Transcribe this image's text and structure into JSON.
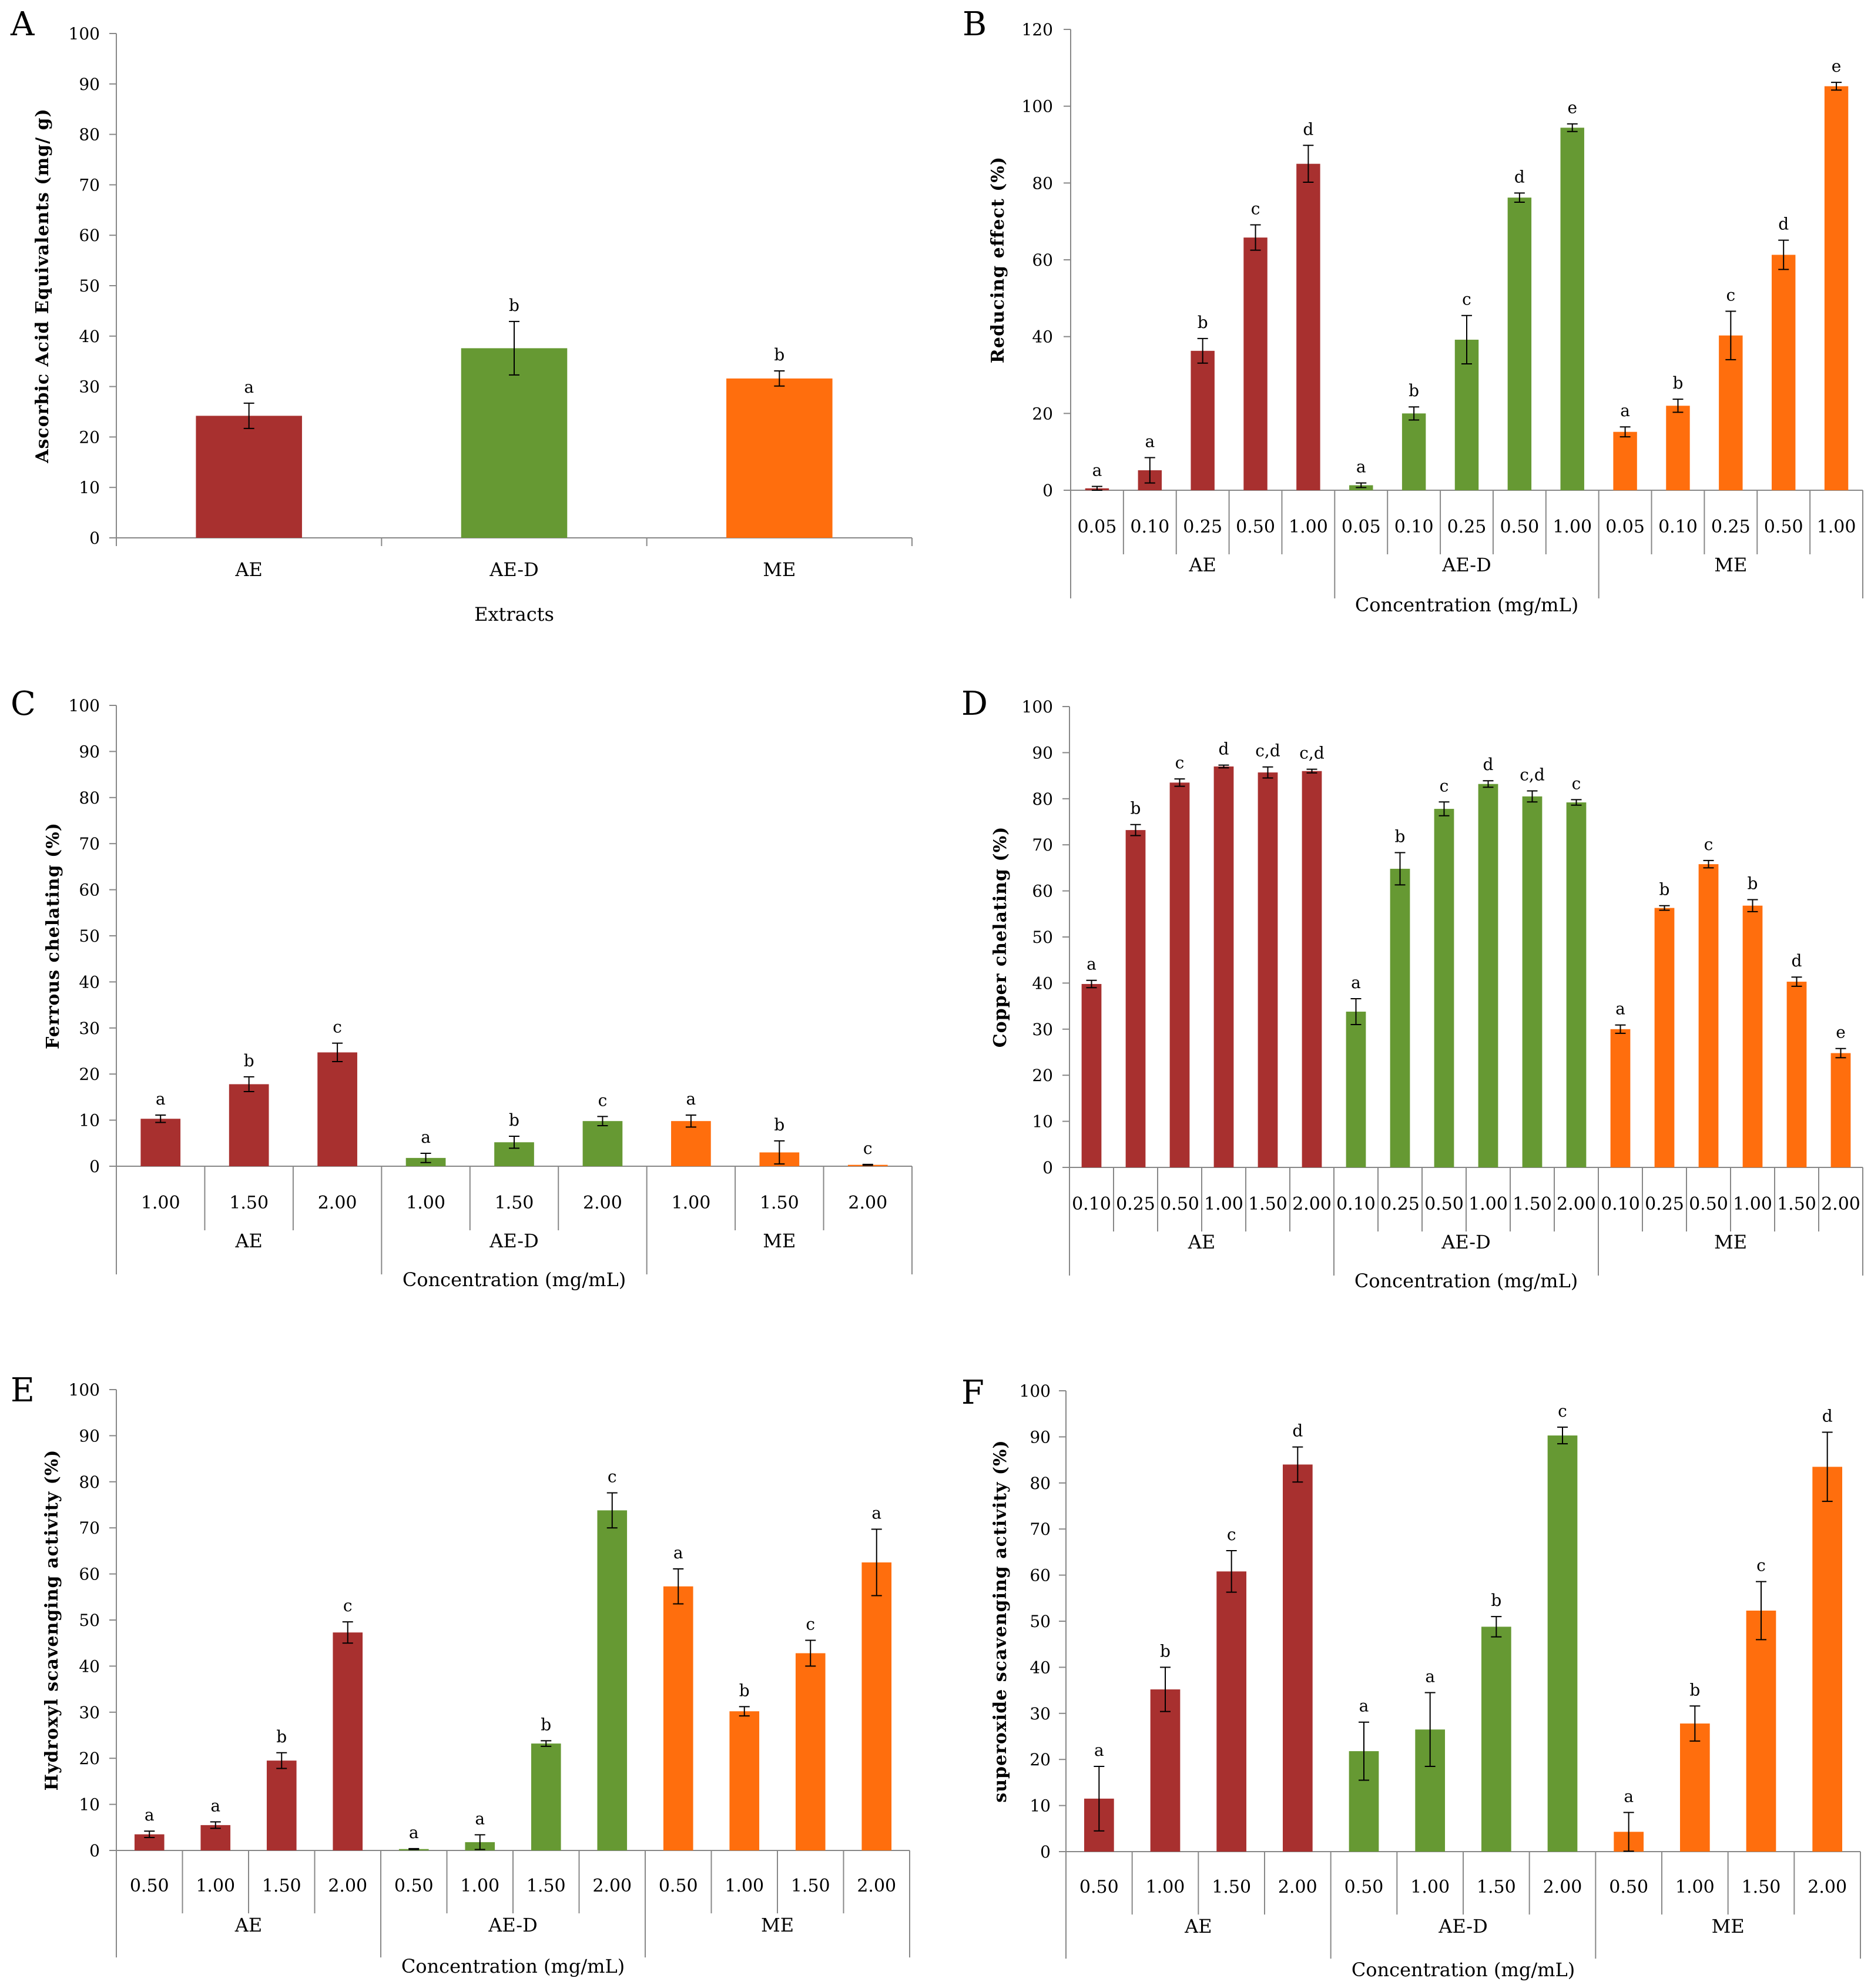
{
  "colors": {
    "AE": "#A8302F",
    "AE-D": "#669933",
    "ME": "#FF6E0D"
  },
  "chart_data": [
    {
      "panel": "A",
      "type": "bar",
      "ylabel": "Ascorbic Acid Equivalents (mg/ g)",
      "xlabel": "Extracts",
      "ylim": [
        0,
        100
      ],
      "ystep": 10,
      "groups": [
        {
          "name": "AE",
          "bars": [
            {
              "label": "",
              "value": 24.2,
              "err": 2.5,
              "sig": "a"
            }
          ]
        },
        {
          "name": "AE-D",
          "bars": [
            {
              "label": "",
              "value": 37.6,
              "err": 5.3,
              "sig": "b"
            }
          ]
        },
        {
          "name": "ME",
          "bars": [
            {
              "label": "",
              "value": 31.6,
              "err": 1.5,
              "sig": "b"
            }
          ]
        }
      ]
    },
    {
      "panel": "B",
      "type": "bar",
      "ylabel": "Reducing effect (%)",
      "xlabel": "Concentration (mg/mL)",
      "ylim": [
        0,
        120
      ],
      "ystep": 20,
      "groups": [
        {
          "name": "AE",
          "bars": [
            {
              "label": "0.05",
              "value": 0.5,
              "err": 0.5,
              "sig": "a"
            },
            {
              "label": "0.10",
              "value": 5.2,
              "err": 3.3,
              "sig": "a"
            },
            {
              "label": "0.25",
              "value": 36.3,
              "err": 3.2,
              "sig": "b"
            },
            {
              "label": "0.50",
              "value": 65.8,
              "err": 3.3,
              "sig": "c"
            },
            {
              "label": "1.00",
              "value": 85.0,
              "err": 4.8,
              "sig": "d"
            }
          ]
        },
        {
          "name": "AE-D",
          "bars": [
            {
              "label": "0.05",
              "value": 1.3,
              "err": 0.6,
              "sig": "a"
            },
            {
              "label": "0.10",
              "value": 20.0,
              "err": 1.7,
              "sig": "b"
            },
            {
              "label": "0.25",
              "value": 39.2,
              "err": 6.3,
              "sig": "c"
            },
            {
              "label": "0.50",
              "value": 76.2,
              "err": 1.2,
              "sig": "d"
            },
            {
              "label": "1.00",
              "value": 94.4,
              "err": 1.0,
              "sig": "e"
            }
          ]
        },
        {
          "name": "ME",
          "bars": [
            {
              "label": "0.05",
              "value": 15.2,
              "err": 1.3,
              "sig": "a"
            },
            {
              "label": "0.10",
              "value": 22.0,
              "err": 1.7,
              "sig": "b"
            },
            {
              "label": "0.25",
              "value": 40.3,
              "err": 6.3,
              "sig": "c"
            },
            {
              "label": "0.50",
              "value": 61.3,
              "err": 3.8,
              "sig": "d"
            },
            {
              "label": "1.00",
              "value": 105.2,
              "err": 1.0,
              "sig": "e"
            }
          ]
        }
      ]
    },
    {
      "panel": "C",
      "type": "bar",
      "ylabel": "Ferrous chelating (%)",
      "xlabel": "Concentration (mg/mL)",
      "ylim": [
        0,
        100
      ],
      "ystep": 10,
      "groups": [
        {
          "name": "AE",
          "bars": [
            {
              "label": "1.00",
              "value": 10.3,
              "err": 0.8,
              "sig": "a"
            },
            {
              "label": "1.50",
              "value": 17.8,
              "err": 1.6,
              "sig": "b"
            },
            {
              "label": "2.00",
              "value": 24.7,
              "err": 2.0,
              "sig": "c"
            }
          ]
        },
        {
          "name": "AE-D",
          "bars": [
            {
              "label": "1.00",
              "value": 1.8,
              "err": 1.0,
              "sig": "a"
            },
            {
              "label": "1.50",
              "value": 5.2,
              "err": 1.3,
              "sig": "b"
            },
            {
              "label": "2.00",
              "value": 9.8,
              "err": 1.0,
              "sig": "c"
            }
          ]
        },
        {
          "name": "ME",
          "bars": [
            {
              "label": "1.00",
              "value": 9.8,
              "err": 1.3,
              "sig": "a"
            },
            {
              "label": "1.50",
              "value": 3.0,
              "err": 2.5,
              "sig": "b"
            },
            {
              "label": "2.00",
              "value": 0.3,
              "err": 0.1,
              "sig": "c"
            }
          ]
        }
      ]
    },
    {
      "panel": "D",
      "type": "bar",
      "ylabel": "Copper chelating (%)",
      "xlabel": "Concentration (mg/mL)",
      "ylim": [
        0,
        100
      ],
      "ystep": 10,
      "groups": [
        {
          "name": "AE",
          "bars": [
            {
              "label": "0.10",
              "value": 39.8,
              "err": 0.8,
              "sig": "a"
            },
            {
              "label": "0.25",
              "value": 73.2,
              "err": 1.2,
              "sig": "b"
            },
            {
              "label": "0.50",
              "value": 83.5,
              "err": 0.8,
              "sig": "c"
            },
            {
              "label": "1.00",
              "value": 87.0,
              "err": 0.3,
              "sig": "d"
            },
            {
              "label": "1.50",
              "value": 85.7,
              "err": 1.2,
              "sig": "c,d"
            },
            {
              "label": "2.00",
              "value": 86.0,
              "err": 0.4,
              "sig": "c,d"
            }
          ]
        },
        {
          "name": "AE-D",
          "bars": [
            {
              "label": "0.10",
              "value": 33.8,
              "err": 2.8,
              "sig": "a"
            },
            {
              "label": "0.25",
              "value": 64.8,
              "err": 3.5,
              "sig": "b"
            },
            {
              "label": "0.50",
              "value": 77.8,
              "err": 1.5,
              "sig": "c"
            },
            {
              "label": "1.00",
              "value": 83.2,
              "err": 0.7,
              "sig": "d"
            },
            {
              "label": "1.50",
              "value": 80.5,
              "err": 1.2,
              "sig": "c,d"
            },
            {
              "label": "2.00",
              "value": 79.2,
              "err": 0.6,
              "sig": "c"
            }
          ]
        },
        {
          "name": "ME",
          "bars": [
            {
              "label": "0.10",
              "value": 30.0,
              "err": 0.9,
              "sig": "a"
            },
            {
              "label": "0.25",
              "value": 56.3,
              "err": 0.5,
              "sig": "b"
            },
            {
              "label": "0.50",
              "value": 65.8,
              "err": 0.8,
              "sig": "c"
            },
            {
              "label": "1.00",
              "value": 56.8,
              "err": 1.3,
              "sig": "b"
            },
            {
              "label": "1.50",
              "value": 40.3,
              "err": 1.0,
              "sig": "d"
            },
            {
              "label": "2.00",
              "value": 24.8,
              "err": 1.0,
              "sig": "e"
            }
          ]
        }
      ]
    },
    {
      "panel": "E",
      "type": "bar",
      "ylabel": "Hydroxyl scavenging activity (%)",
      "xlabel": "Concentration (mg/mL)",
      "ylim": [
        0,
        100
      ],
      "ystep": 10,
      "groups": [
        {
          "name": "AE",
          "bars": [
            {
              "label": "0.50",
              "value": 3.5,
              "err": 0.7,
              "sig": "a"
            },
            {
              "label": "1.00",
              "value": 5.5,
              "err": 0.7,
              "sig": "a"
            },
            {
              "label": "1.50",
              "value": 19.5,
              "err": 1.7,
              "sig": "b"
            },
            {
              "label": "2.00",
              "value": 47.3,
              "err": 2.3,
              "sig": "c"
            }
          ]
        },
        {
          "name": "AE-D",
          "bars": [
            {
              "label": "0.50",
              "value": 0.3,
              "err": 0.1,
              "sig": "a"
            },
            {
              "label": "1.00",
              "value": 1.8,
              "err": 1.6,
              "sig": "a"
            },
            {
              "label": "1.50",
              "value": 23.2,
              "err": 0.6,
              "sig": "b"
            },
            {
              "label": "2.00",
              "value": 73.8,
              "err": 3.8,
              "sig": "c"
            }
          ]
        },
        {
          "name": "ME",
          "bars": [
            {
              "label": "0.50",
              "value": 57.3,
              "err": 3.8,
              "sig": "a"
            },
            {
              "label": "1.00",
              "value": 30.2,
              "err": 1.0,
              "sig": "b"
            },
            {
              "label": "1.50",
              "value": 42.8,
              "err": 2.8,
              "sig": "c"
            },
            {
              "label": "2.00",
              "value": 62.5,
              "err": 7.2,
              "sig": "a"
            }
          ]
        }
      ]
    },
    {
      "panel": "F",
      "type": "bar",
      "ylabel": "superoxide scavenging activity (%)",
      "xlabel": "Concentration (mg/mL)",
      "ylim": [
        0,
        100
      ],
      "ystep": 10,
      "groups": [
        {
          "name": "AE",
          "bars": [
            {
              "label": "0.50",
              "value": 11.5,
              "err": 7.0,
              "sig": "a"
            },
            {
              "label": "1.00",
              "value": 35.2,
              "err": 4.8,
              "sig": "b"
            },
            {
              "label": "1.50",
              "value": 60.8,
              "err": 4.5,
              "sig": "c"
            },
            {
              "label": "2.00",
              "value": 84.0,
              "err": 3.8,
              "sig": "d"
            }
          ]
        },
        {
          "name": "AE-D",
          "bars": [
            {
              "label": "0.50",
              "value": 21.8,
              "err": 6.3,
              "sig": "a"
            },
            {
              "label": "1.00",
              "value": 26.5,
              "err": 8.0,
              "sig": "a"
            },
            {
              "label": "1.50",
              "value": 48.8,
              "err": 2.2,
              "sig": "b"
            },
            {
              "label": "2.00",
              "value": 90.3,
              "err": 1.8,
              "sig": "c"
            }
          ]
        },
        {
          "name": "ME",
          "bars": [
            {
              "label": "0.50",
              "value": 4.3,
              "err": 4.2,
              "sig": "a"
            },
            {
              "label": "1.00",
              "value": 27.8,
              "err": 3.8,
              "sig": "b"
            },
            {
              "label": "1.50",
              "value": 52.3,
              "err": 6.3,
              "sig": "c"
            },
            {
              "label": "2.00",
              "value": 83.5,
              "err": 7.5,
              "sig": "d"
            }
          ]
        }
      ]
    }
  ]
}
